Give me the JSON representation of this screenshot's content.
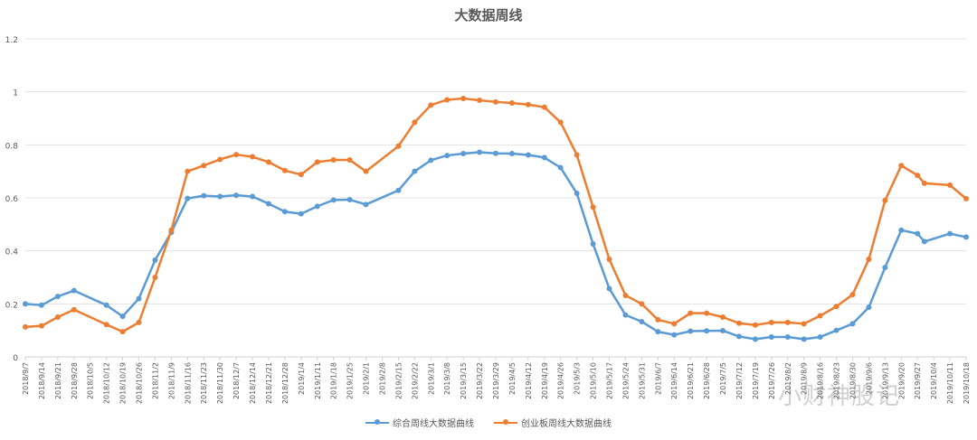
{
  "chart_data": {
    "type": "line",
    "title": "大数据周线",
    "xlabel": "",
    "ylabel": "",
    "ylim": [
      0,
      1.2
    ],
    "yticks": [
      "0",
      "0.2",
      "0.4",
      "0.6",
      "0.8",
      "1",
      "1.2"
    ],
    "grid": true,
    "legend_position": "bottom",
    "x_tick_labels": [
      "2018/9/7",
      "2018/9/14",
      "2018/9/21",
      "2018/9/28",
      "2018/10/5",
      "2018/10/12",
      "2018/10/19",
      "2018/10/26",
      "2018/11/2",
      "2018/11/9",
      "2018/11/16",
      "2018/11/23",
      "2018/11/30",
      "2018/12/7",
      "2018/12/14",
      "2018/12/21",
      "2018/12/28",
      "2019/1/4",
      "2019/1/11",
      "2019/1/18",
      "2019/1/25",
      "2019/2/1",
      "2019/2/8",
      "2019/2/15",
      "2019/2/22",
      "2019/3/1",
      "2019/3/8",
      "2019/3/15",
      "2019/3/22",
      "2019/3/29",
      "2019/4/5",
      "2019/4/12",
      "2019/4/19",
      "2019/4/26",
      "2019/5/3",
      "2019/5/10",
      "2019/5/17",
      "2019/5/24",
      "2019/5/31",
      "2019/6/7",
      "2019/6/14",
      "2019/6/21",
      "2019/6/28",
      "2019/7/5",
      "2019/7/12",
      "2019/7/19",
      "2019/7/26",
      "2019/8/2",
      "2019/8/9",
      "2019/8/16",
      "2019/8/23",
      "2019/8/30",
      "2019/9/6",
      "2019/9/13",
      "2019/9/20",
      "2019/9/27",
      "2019/10/4",
      "2019/10/11",
      "2019/10/18"
    ],
    "x": [
      "2018/9/7",
      "2018/9/14",
      "2018/9/21",
      "2018/9/28",
      "2018/10/12",
      "2018/10/19",
      "2018/10/26",
      "2018/11/2",
      "2018/11/9",
      "2018/11/16",
      "2018/11/23",
      "2018/11/30",
      "2018/12/7",
      "2018/12/14",
      "2018/12/21",
      "2018/12/28",
      "2019/1/4",
      "2019/1/11",
      "2019/1/18",
      "2019/1/25",
      "2019/2/1",
      "2019/2/15",
      "2019/2/22",
      "2019/3/1",
      "2019/3/8",
      "2019/3/15",
      "2019/3/22",
      "2019/3/29",
      "2019/4/5",
      "2019/4/12",
      "2019/4/19",
      "2019/4/26",
      "2019/5/3",
      "2019/5/10",
      "2019/5/17",
      "2019/5/24",
      "2019/5/31",
      "2019/6/7",
      "2019/6/14",
      "2019/6/21",
      "2019/6/28",
      "2019/7/5",
      "2019/7/12",
      "2019/7/19",
      "2019/7/26",
      "2019/8/2",
      "2019/8/9",
      "2019/8/16",
      "2019/8/23",
      "2019/8/30",
      "2019/9/6",
      "2019/9/13",
      "2019/9/20",
      "2019/9/27",
      "2019/9/30",
      "2019/10/11",
      "2019/10/18"
    ],
    "series": [
      {
        "name": "综合周线大数据曲线",
        "color": "#5B9BD5",
        "values": [
          0.2,
          0.195,
          0.228,
          0.25,
          0.195,
          0.153,
          0.22,
          0.365,
          0.47,
          0.598,
          0.608,
          0.605,
          0.61,
          0.605,
          0.578,
          0.548,
          0.54,
          0.568,
          0.592,
          0.593,
          0.575,
          0.628,
          0.7,
          0.742,
          0.76,
          0.767,
          0.772,
          0.768,
          0.767,
          0.762,
          0.752,
          0.714,
          0.617,
          0.426,
          0.258,
          0.158,
          0.133,
          0.095,
          0.083,
          0.097,
          0.098,
          0.099,
          0.077,
          0.067,
          0.075,
          0.075,
          0.067,
          0.075,
          0.1,
          0.125,
          0.187,
          0.337,
          0.478,
          0.465,
          0.435,
          0.465,
          0.452
        ]
      },
      {
        "name": "创业板周线大数据曲线",
        "color": "#ED7D31",
        "values": [
          0.113,
          0.117,
          0.15,
          0.178,
          0.122,
          0.095,
          0.13,
          0.3,
          0.478,
          0.7,
          0.722,
          0.745,
          0.763,
          0.755,
          0.735,
          0.703,
          0.688,
          0.735,
          0.743,
          0.743,
          0.7,
          0.795,
          0.885,
          0.95,
          0.97,
          0.975,
          0.968,
          0.962,
          0.958,
          0.952,
          0.942,
          0.885,
          0.762,
          0.565,
          0.368,
          0.232,
          0.2,
          0.14,
          0.125,
          0.165,
          0.165,
          0.15,
          0.127,
          0.12,
          0.13,
          0.13,
          0.125,
          0.155,
          0.19,
          0.235,
          0.368,
          0.59,
          0.722,
          0.685,
          0.655,
          0.648,
          0.597
        ]
      }
    ]
  },
  "watermark": "小财神股记"
}
